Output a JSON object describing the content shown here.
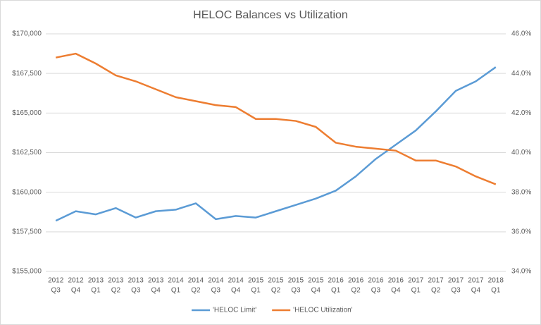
{
  "chart_data": {
    "type": "line",
    "title": "HELOC Balances vs Utilization",
    "categories": [
      [
        "2012",
        "Q3"
      ],
      [
        "2012",
        "Q4"
      ],
      [
        "2013",
        "Q1"
      ],
      [
        "2013",
        "Q2"
      ],
      [
        "2013",
        "Q3"
      ],
      [
        "2013",
        "Q4"
      ],
      [
        "2014",
        "Q1"
      ],
      [
        "2014",
        "Q2"
      ],
      [
        "2014",
        "Q3"
      ],
      [
        "2014",
        "Q4"
      ],
      [
        "2015",
        "Q1"
      ],
      [
        "2015",
        "Q2"
      ],
      [
        "2015",
        "Q3"
      ],
      [
        "2015",
        "Q4"
      ],
      [
        "2016",
        "Q1"
      ],
      [
        "2016",
        "Q2"
      ],
      [
        "2016",
        "Q3"
      ],
      [
        "2016",
        "Q4"
      ],
      [
        "2017",
        "Q1"
      ],
      [
        "2017",
        "Q2"
      ],
      [
        "2017",
        "Q3"
      ],
      [
        "2017",
        "Q4"
      ],
      [
        "2018",
        "Q1"
      ]
    ],
    "series": [
      {
        "name": "'HELOC Limit'",
        "color": "#5b9bd5",
        "axis": "y",
        "values": [
          158200,
          158800,
          158600,
          159000,
          158400,
          158800,
          158900,
          159300,
          158300,
          158500,
          158400,
          158800,
          159200,
          159600,
          160100,
          161000,
          162100,
          163000,
          163900,
          165100,
          166400,
          167000,
          167900
        ]
      },
      {
        "name": "'HELOC Utilization'",
        "color": "#ed7d31",
        "axis": "y2",
        "values": [
          44.8,
          45.0,
          44.5,
          43.9,
          43.6,
          43.2,
          42.8,
          42.6,
          42.4,
          42.3,
          41.7,
          41.7,
          41.6,
          41.3,
          40.5,
          40.3,
          40.2,
          40.1,
          39.6,
          39.6,
          39.3,
          38.8,
          38.4
        ]
      }
    ],
    "ylim": [
      155000,
      170000
    ],
    "yticks": [
      {
        "value": 155000,
        "label": "$155,000"
      },
      {
        "value": 157500,
        "label": "$157,500"
      },
      {
        "value": 160000,
        "label": "$160,000"
      },
      {
        "value": 162500,
        "label": "$162,500"
      },
      {
        "value": 165000,
        "label": "$165,000"
      },
      {
        "value": 167500,
        "label": "$167,500"
      },
      {
        "value": 170000,
        "label": "$170,000"
      }
    ],
    "y2lim": [
      34,
      46
    ],
    "y2ticks": [
      {
        "value": 34,
        "label": "34.0%"
      },
      {
        "value": 36,
        "label": "36.0%"
      },
      {
        "value": 38,
        "label": "38.0%"
      },
      {
        "value": 40,
        "label": "40.0%"
      },
      {
        "value": 42,
        "label": "42.0%"
      },
      {
        "value": 44,
        "label": "44.0%"
      },
      {
        "value": 46,
        "label": "46.0%"
      }
    ],
    "grid": true,
    "legend": "bottom"
  }
}
